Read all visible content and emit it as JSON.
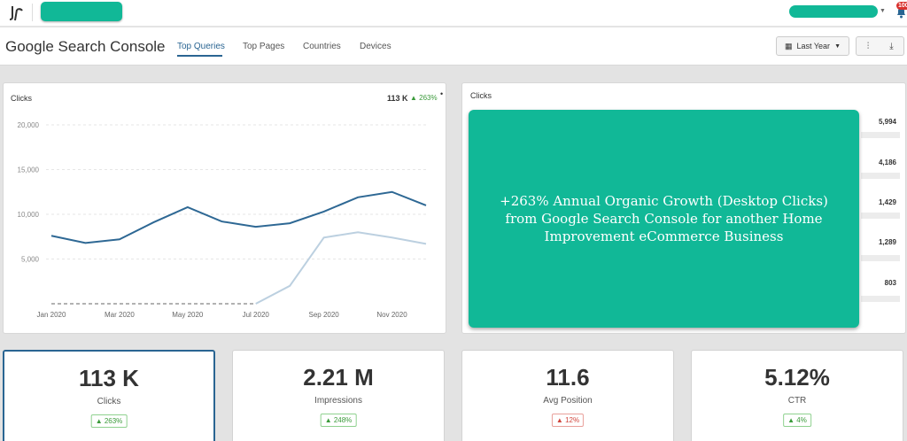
{
  "header": {
    "title": "Google Search Console",
    "tabs": [
      {
        "label": "Top Queries",
        "active": true
      },
      {
        "label": "Top Pages",
        "active": false
      },
      {
        "label": "Countries",
        "active": false
      },
      {
        "label": "Devices",
        "active": false
      }
    ],
    "date_range": "Last Year",
    "notification_count": "100"
  },
  "line_panel": {
    "title": "Clicks",
    "summary_value": "113 K",
    "summary_delta": "263%"
  },
  "bar_panel": {
    "title": "Clicks",
    "values": [
      "5,994",
      "4,186",
      "1,429",
      "1,289",
      "803"
    ]
  },
  "overlay": {
    "text": "+263% Annual Organic Growth (Desktop Clicks) from Google Search Console for another Home Improvement eCommerce Business"
  },
  "cards": [
    {
      "value": "113 K",
      "label": "Clicks",
      "delta": "263%",
      "direction": "up"
    },
    {
      "value": "2.21 M",
      "label": "Impressions",
      "delta": "248%",
      "direction": "up"
    },
    {
      "value": "11.6",
      "label": "Avg Position",
      "delta": "12%",
      "direction": "down"
    },
    {
      "value": "5.12%",
      "label": "CTR",
      "delta": "4%",
      "direction": "up"
    }
  ],
  "colors": {
    "accent": "#2a6592",
    "overlay": "#11b897",
    "up": "#3a9a3a",
    "down": "#d0453c",
    "series_current": "#2e6894",
    "series_previous": "#bcd0e0"
  },
  "chart_data": {
    "type": "line",
    "title": "Clicks",
    "xlabel": "",
    "ylabel": "",
    "ylim": [
      0,
      20000
    ],
    "yticks": [
      "5,000",
      "10,000",
      "15,000",
      "20,000"
    ],
    "ytick_values": [
      5000,
      10000,
      15000,
      20000
    ],
    "xtick_labels": [
      "Jan 2020",
      "Mar 2020",
      "May 2020",
      "Jul 2020",
      "Sep 2020",
      "Nov 2020"
    ],
    "xtick_index": [
      0,
      2,
      4,
      6,
      8,
      10
    ],
    "grid": true,
    "series": [
      {
        "values": [
          7600,
          6800,
          7200,
          9100,
          10800,
          9200,
          8600,
          9000,
          10300,
          11900,
          12500,
          11000
        ]
      },
      {
        "values": [
          0,
          0,
          0,
          0,
          0,
          0,
          0,
          2000,
          7400,
          8000,
          7400,
          6700
        ],
        "dashed_until": 6
      }
    ]
  }
}
